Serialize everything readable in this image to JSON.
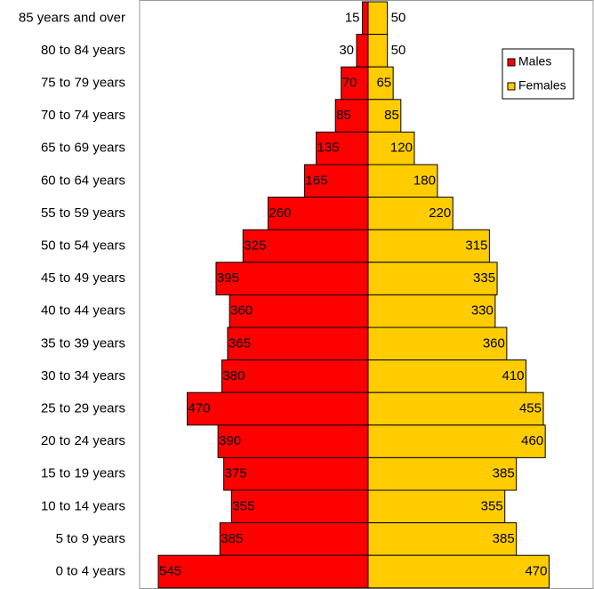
{
  "chart_data": {
    "type": "pyramid",
    "categories": [
      "85 years and over",
      "80 to 84 years",
      "75 to 79 years",
      "70 to 74 years",
      "65 to 69 years",
      "60 to 64 years",
      "55 to 59 years",
      "50 to 54 years",
      "45 to 49 years",
      "40 to 44 years",
      "35 to 39 years",
      "30 to 34 years",
      "25 to 29 years",
      "20 to 24 years",
      "15 to 19 years",
      "10 to 14 years",
      "5 to 9 years",
      "0 to 4 years"
    ],
    "series": [
      {
        "name": "Males",
        "color": "#ff0000",
        "values": [
          15,
          30,
          70,
          85,
          135,
          165,
          260,
          325,
          395,
          360,
          365,
          380,
          470,
          390,
          375,
          355,
          385,
          545
        ]
      },
      {
        "name": "Females",
        "color": "#ffcc00",
        "values": [
          50,
          50,
          65,
          85,
          120,
          180,
          220,
          315,
          335,
          330,
          360,
          410,
          455,
          460,
          385,
          355,
          385,
          470
        ]
      }
    ],
    "legend": "upper right"
  }
}
